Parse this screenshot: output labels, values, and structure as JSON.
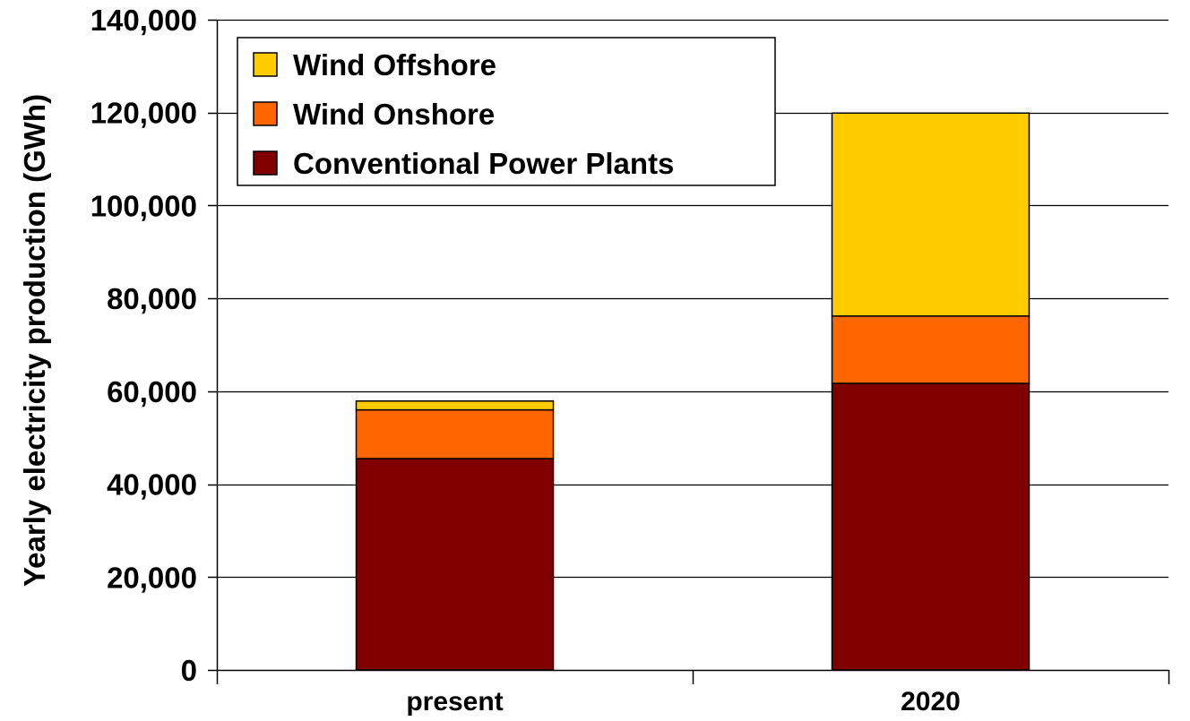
{
  "chart_data": {
    "type": "bar",
    "stacked": true,
    "categories": [
      "present",
      "2020"
    ],
    "series": [
      {
        "name": "Conventional Power Plants",
        "color": "#800000",
        "values": [
          45500,
          61700
        ]
      },
      {
        "name": "Wind Onshore",
        "color": "#FF6600",
        "values": [
          10500,
          14500
        ]
      },
      {
        "name": "Wind Offshore",
        "color": "#FFCC00",
        "values": [
          1900,
          43700
        ]
      }
    ],
    "title": "",
    "xlabel": "",
    "ylabel": "Yearly electricity production (GWh)",
    "ylim": [
      0,
      140000
    ],
    "yticks": [
      0,
      20000,
      40000,
      60000,
      80000,
      100000,
      120000,
      140000
    ],
    "ytick_labels": [
      "0",
      "20,000",
      "40,000",
      "60,000",
      "80,000",
      "100,000",
      "120,000",
      "140,000"
    ],
    "grid": "horizontal",
    "legend_position": "top-left",
    "legend_order": [
      "Wind Offshore",
      "Wind Onshore",
      "Conventional Power Plants"
    ]
  }
}
